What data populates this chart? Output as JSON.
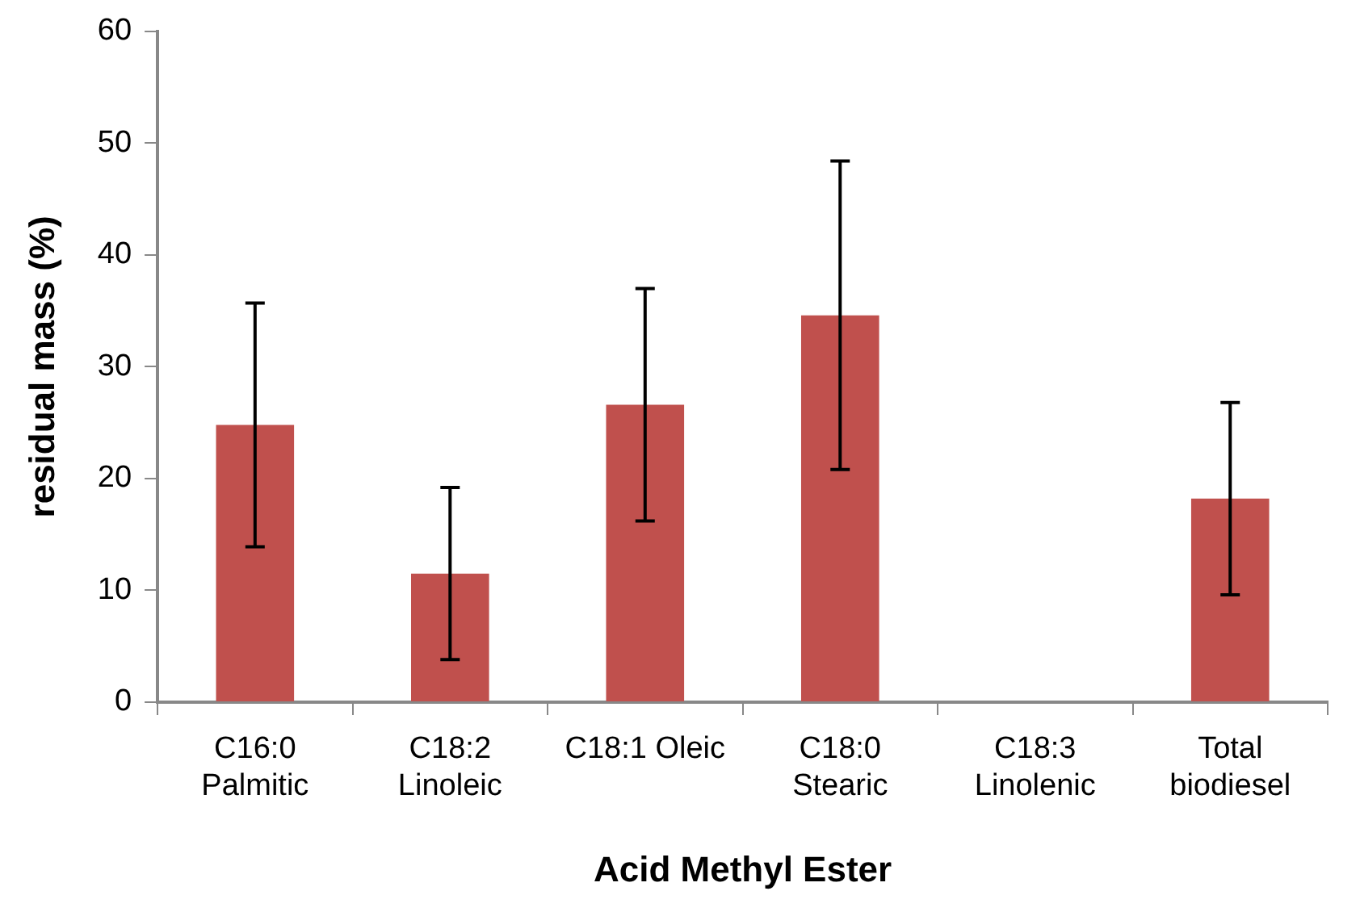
{
  "chart_data": {
    "type": "bar",
    "xlabel": "Acid Methyl Ester",
    "ylabel": "residual mass (%)",
    "categories": [
      "C16:0\nPalmitic",
      "C18:2\nLinoleic",
      "C18:1 Oleic",
      "C18:0\nStearic",
      "C18:3\nLinolenic",
      "Total\nbiodiesel"
    ],
    "values": [
      24.8,
      11.5,
      26.6,
      34.6,
      0,
      18.2
    ],
    "errors": [
      10.9,
      7.7,
      10.4,
      13.8,
      null,
      8.6
    ],
    "color": "#c0504d",
    "ylim": [
      0,
      60
    ],
    "yticks": [
      0,
      10,
      20,
      30,
      40,
      50,
      60
    ],
    "grid": false,
    "legend": false
  }
}
